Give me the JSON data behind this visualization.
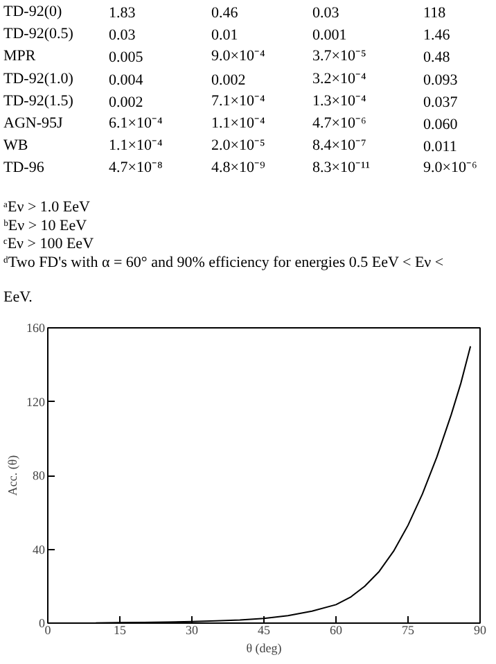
{
  "chart_data": {
    "type": "line",
    "xlabel": "θ (deg)",
    "ylabel": "Acc. (θ)",
    "x": [
      10,
      15,
      20,
      25,
      30,
      35,
      40,
      45,
      50,
      55,
      60,
      63,
      66,
      69,
      72,
      75,
      78,
      81,
      84,
      86,
      88
    ],
    "series": [
      {
        "color": "#000000",
        "values": [
          0.1,
          0.3,
          0.4,
          0.6,
          0.8,
          1.2,
          1.7,
          2.5,
          4,
          6.5,
          10,
          14,
          20,
          28,
          39,
          53,
          70,
          90,
          113,
          130,
          150
        ]
      }
    ],
    "xlim": [
      0,
      90
    ],
    "xticks": [
      0,
      15,
      30,
      45,
      60,
      75,
      90
    ],
    "ylim": [
      0,
      160
    ],
    "yticks": [
      0,
      40,
      80,
      120,
      160
    ],
    "grid": false,
    "marker": "none",
    "line_style": "solid",
    "annotations": [
      "TD-92(0)",
      "1.83",
      "0.46",
      "0.03",
      "118",
      "TD-92(0.5)",
      "0.03",
      "0.01",
      "0.001",
      "1.46",
      "MPR",
      "0.005",
      "9.0×10⁻⁴",
      "3.7×10⁻⁵",
      "0.48",
      "TD-92(1.0)",
      "0.004",
      "0.002",
      "3.2×10⁻⁴",
      "0.093",
      "TD-92(1.5)",
      "0.002",
      "7.1×10⁻⁴",
      "1.3×10⁻⁴",
      "0.037",
      "AGN-95J",
      "6.1×10⁻⁴",
      "1.1×10⁻⁴",
      "4.7×10⁻⁶",
      "0.060",
      "WB",
      "1.1×10⁻⁴",
      "2.0×10⁻⁵",
      "8.4×10⁻⁷",
      "0.011",
      "TD-96",
      "4.7×10⁻⁸",
      "4.8×10⁻⁹",
      "8.3×10⁻¹¹",
      "9.0×10⁻⁶",
      "ᵃEν > 1.0 EeV",
      "ᵇEν > 10 EeV",
      "ᶜEν > 100 EeV",
      "ᵈTwo FD's with α = 60° and 90% efficiency for energies 0.5 EeV < Eν <",
      "EeV."
    ]
  }
}
